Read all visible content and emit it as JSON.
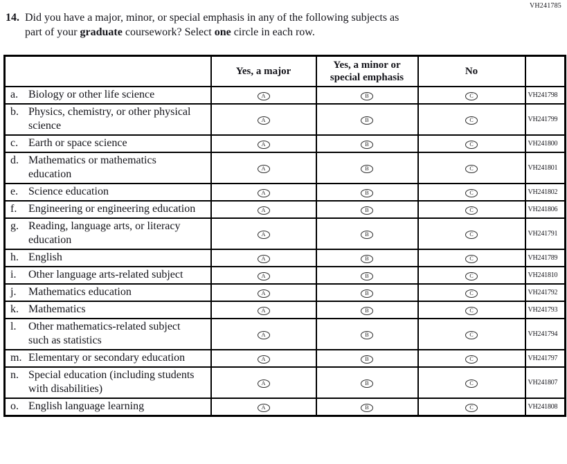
{
  "form_code": "VH241785",
  "question": {
    "number": "14.",
    "line1": "Did you have a major, minor, or special emphasis in any of the following subjects as",
    "line2_part1": "part of your ",
    "line2_bold1": "graduate",
    "line2_part2": " coursework? Select ",
    "line2_bold2": "one",
    "line2_part3": " circle in each row."
  },
  "table": {
    "column_headers": [
      "Yes, a major",
      "Yes, a minor or special emphasis",
      "No"
    ],
    "options": [
      "A",
      "B",
      "C"
    ],
    "rows": [
      {
        "letter": "a.",
        "label": "Biology or other life science",
        "code": "VH241798"
      },
      {
        "letter": "b.",
        "label": "Physics, chemistry, or other physical science",
        "code": "VH241799"
      },
      {
        "letter": "c.",
        "label": "Earth or space science",
        "code": "VH241800"
      },
      {
        "letter": "d.",
        "label": "Mathematics or mathematics education",
        "code": "VH241801"
      },
      {
        "letter": "e.",
        "label": "Science education",
        "code": "VH241802"
      },
      {
        "letter": "f.",
        "label": "Engineering or engineering education",
        "code": "VH241806"
      },
      {
        "letter": "g.",
        "label": "Reading, language arts, or literacy education",
        "code": "VH241791"
      },
      {
        "letter": "h.",
        "label": "English",
        "code": "VH241789"
      },
      {
        "letter": "i.",
        "label": "Other language arts-related subject",
        "code": "VH241810"
      },
      {
        "letter": "j.",
        "label": "Mathematics education",
        "code": "VH241792"
      },
      {
        "letter": "k.",
        "label": "Mathematics",
        "code": "VH241793"
      },
      {
        "letter": "l.",
        "label": "Other mathematics-related subject such as statistics",
        "code": "VH241794"
      },
      {
        "letter": "m.",
        "label": "Elementary or secondary education",
        "code": "VH241797"
      },
      {
        "letter": "n.",
        "label": "Special education (including students with disabilities)",
        "code": "VH241807"
      },
      {
        "letter": "o.",
        "label": "English language learning",
        "code": "VH241808"
      }
    ]
  },
  "colors": {
    "text": "#14141a",
    "border": "#000000",
    "background": "#ffffff"
  }
}
